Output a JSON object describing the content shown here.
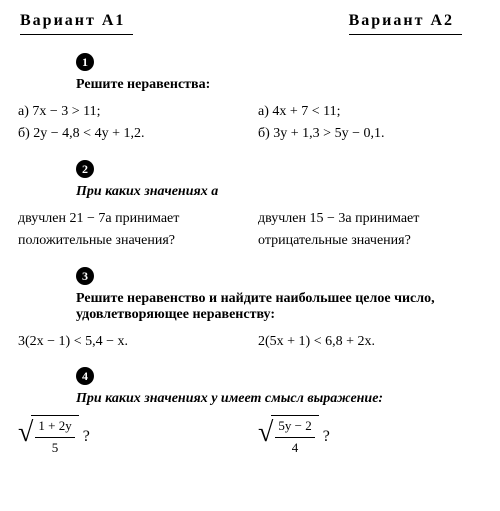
{
  "variants": {
    "left": "Вариант А1",
    "right": "Вариант А2"
  },
  "task1": {
    "num": "1",
    "title": "Решите неравенства:",
    "left_a": "а) 7x − 3 > 11;",
    "left_b": "б) 2y − 4,8 < 4y + 1,2.",
    "right_a": "а) 4x + 7 < 11;",
    "right_b": "б) 3y + 1,3 > 5y − 0,1."
  },
  "task2": {
    "num": "2",
    "title": "При каких значениях a",
    "left": "двучлен  21 − 7a  принимает положительные значения?",
    "right": "двучлен  15 − 3a  принимает отрицательные значения?"
  },
  "task3": {
    "num": "3",
    "title": "Решите неравенство и найдите наибольшее целое число, удовлетворяющее неравенству:",
    "left": "3(2x − 1) < 5,4 − x.",
    "right": "2(5x + 1) < 6,8 + 2x."
  },
  "task4": {
    "num": "4",
    "title": "При каких значениях y имеет смысл выражение:",
    "left_num": "1 + 2y",
    "left_den": "5",
    "right_num": "5y − 2",
    "right_den": "4",
    "q": "?"
  }
}
